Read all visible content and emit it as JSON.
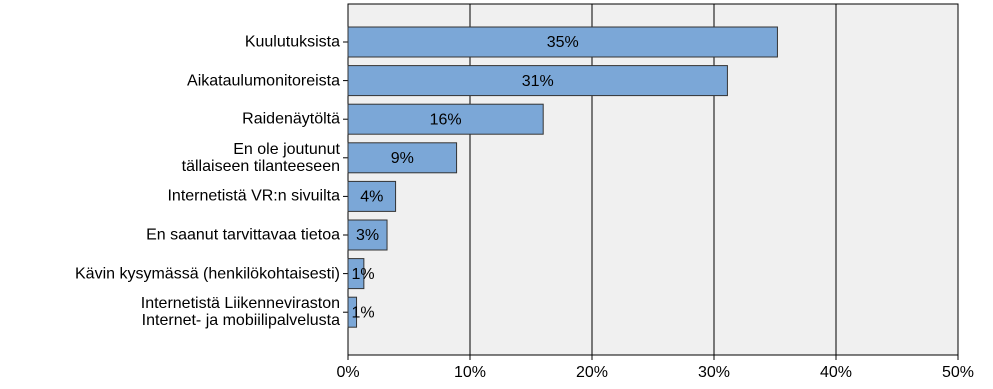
{
  "chart_data": {
    "type": "bar",
    "orientation": "horizontal",
    "categories": [
      "Kuulutuksista",
      "Aikataulumonitoreista",
      "Raidenäytöltä",
      "En ole joutunut\ntällaiseen tilanteeseen",
      "Internetistä VR:n sivuilta",
      "En saanut tarvittavaa tietoa",
      "Kävin kysymässä (henkilökohtaisesti)",
      "Internetistä Liikenneviraston\nInternet- ja mobiilipalvelusta"
    ],
    "values": [
      35.2,
      31.1,
      16.0,
      8.9,
      3.9,
      3.2,
      1.3,
      0.7
    ],
    "value_labels": [
      "35%",
      "31%",
      "16%",
      "9%",
      "4%",
      "3%",
      "1%",
      "1%"
    ],
    "color": "#7ba7d7",
    "xlim": [
      0,
      50
    ],
    "xticks": [
      {
        "value": 0,
        "label": "0%"
      },
      {
        "value": 10,
        "label": "10%"
      },
      {
        "value": 20,
        "label": "20%"
      },
      {
        "value": 30,
        "label": "30%"
      },
      {
        "value": 40,
        "label": "40%"
      },
      {
        "value": 50,
        "label": "50%"
      }
    ],
    "grid": true
  }
}
